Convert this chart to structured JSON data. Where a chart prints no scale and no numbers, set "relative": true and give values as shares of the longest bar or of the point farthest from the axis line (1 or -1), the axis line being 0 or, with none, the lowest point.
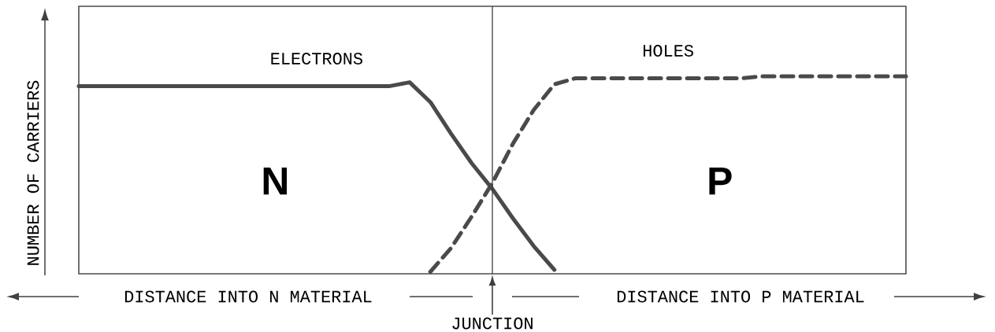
{
  "chart_data": {
    "type": "line",
    "relative": true,
    "tick_labels": false,
    "ylabel": "NUMBER OF CARRIERS",
    "xlabel": "DISTANCE INTO N MATERIAL",
    "annotations": [
      "N",
      "P",
      "DISTANCE INTO P MATERIAL",
      "JUNCTION"
    ],
    "categories": [
      null,
      null,
      null,
      null,
      null,
      null,
      null,
      null,
      null,
      null,
      null,
      null,
      null,
      null,
      null,
      null,
      null,
      null,
      null,
      null,
      null,
      null,
      null,
      null,
      null,
      null,
      null,
      null,
      null,
      null,
      null,
      null,
      null,
      null,
      null,
      null,
      null,
      null,
      null,
      null,
      null
    ],
    "series": [
      {
        "name": "ELECTRONS",
        "color": "#4a4a4a",
        "line_style": "solid",
        "values": [
          0.95,
          0.95,
          0.95,
          0.95,
          0.95,
          0.95,
          0.95,
          0.95,
          0.95,
          0.95,
          0.95,
          0.95,
          0.95,
          0.95,
          0.95,
          0.95,
          0.97,
          0.87,
          0.71,
          0.56,
          0.43,
          0.28,
          0.14,
          0.02,
          null,
          null,
          null,
          null,
          null,
          null,
          null,
          null,
          null,
          null,
          null,
          null,
          null,
          null,
          null,
          null,
          null
        ]
      },
      {
        "name": "HOLES",
        "color": "#4a4a4a",
        "line_style": "dashed",
        "values": [
          null,
          null,
          null,
          null,
          null,
          null,
          null,
          null,
          null,
          null,
          null,
          null,
          null,
          null,
          null,
          null,
          null,
          0.01,
          0.13,
          0.29,
          0.46,
          0.66,
          0.83,
          0.96,
          0.99,
          0.99,
          0.99,
          0.99,
          0.99,
          0.99,
          0.99,
          0.99,
          0.99,
          1,
          1,
          1,
          1,
          1,
          1,
          1,
          1
        ]
      }
    ]
  }
}
